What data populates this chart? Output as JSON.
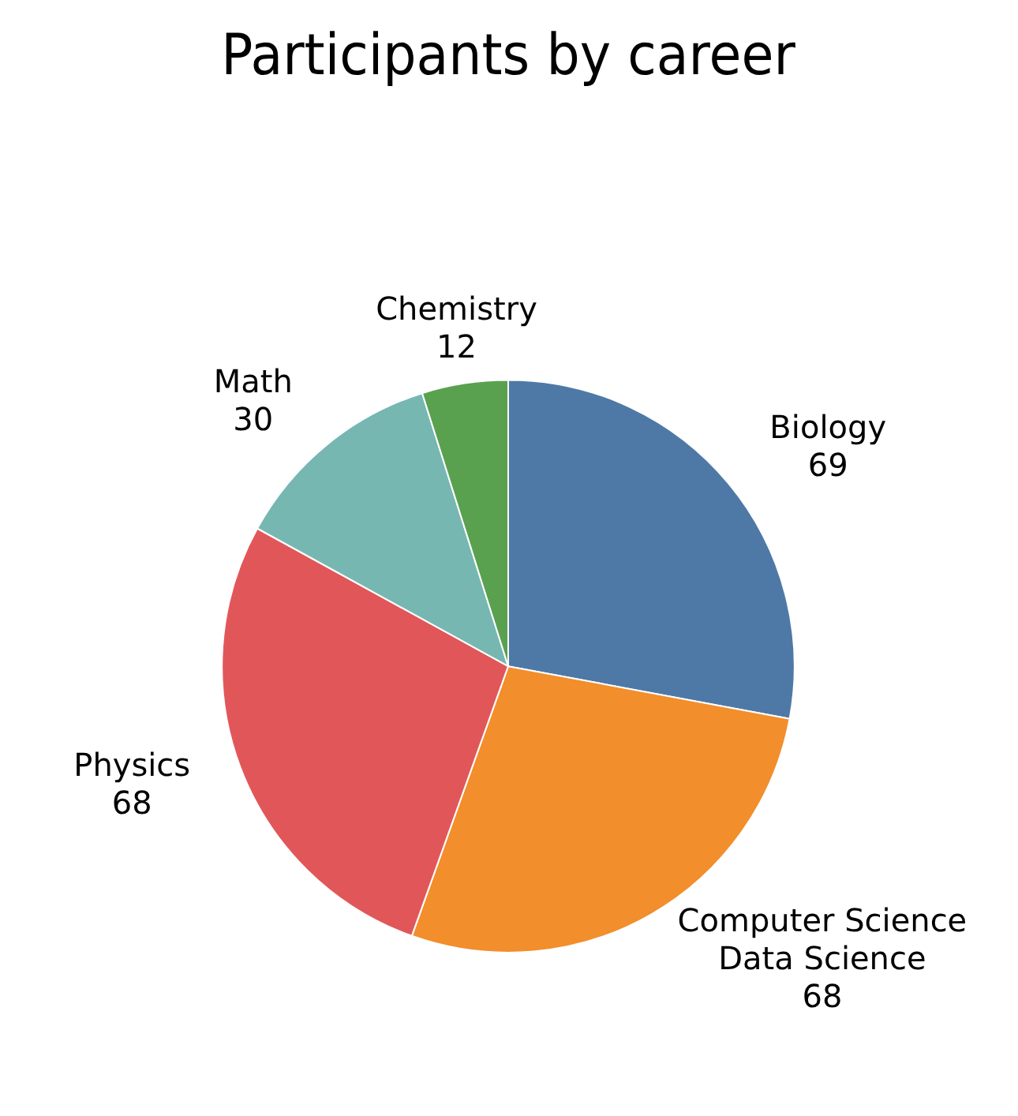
{
  "chart_data": {
    "type": "pie",
    "title": "Participants by career",
    "categories": [
      "Biology",
      "Computer Science\nData Science",
      "Physics",
      "Math",
      "Chemistry"
    ],
    "values": [
      69,
      68,
      68,
      30,
      12
    ],
    "colors": [
      "#4e79a7",
      "#f28e2b",
      "#e15759",
      "#76b7b2",
      "#59a14f"
    ],
    "data_labels": true,
    "legend": false
  }
}
